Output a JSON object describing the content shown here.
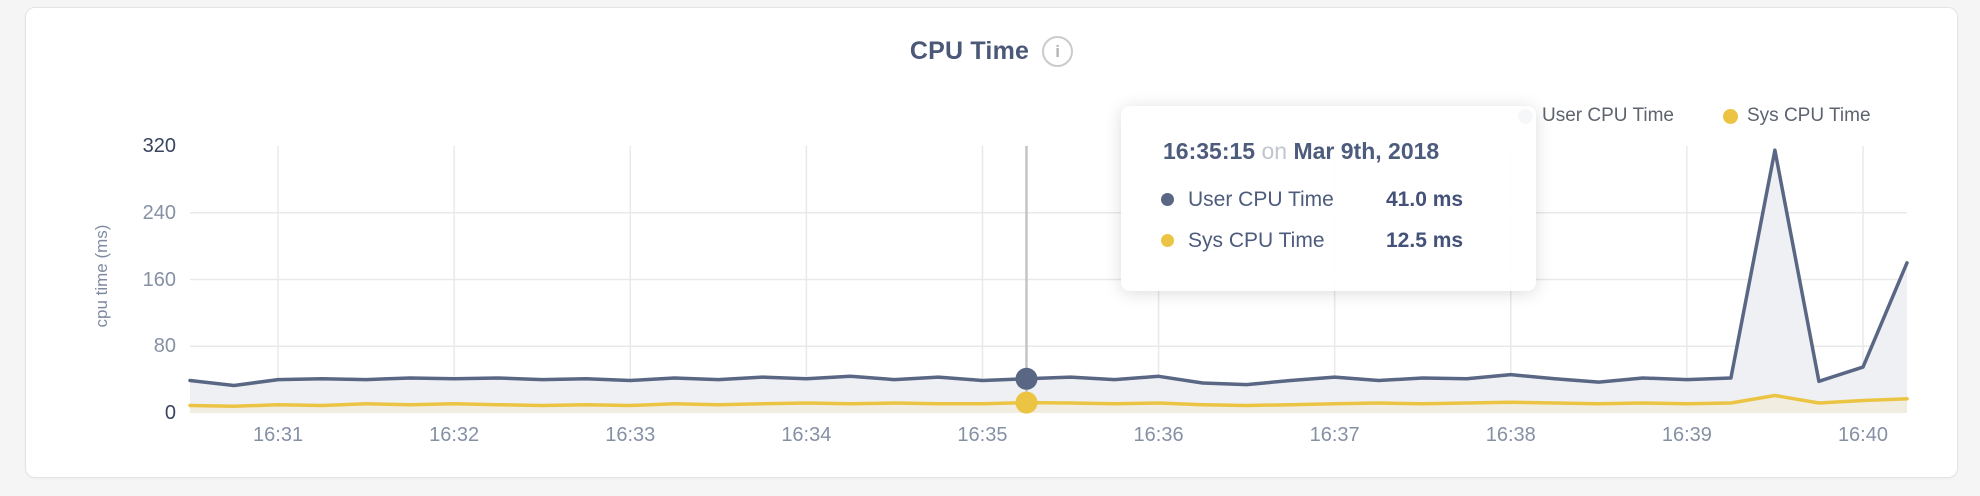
{
  "header": {
    "title": "CPU Time",
    "info_icon": "i"
  },
  "legend": {
    "items": [
      {
        "label": "User CPU Time",
        "color": "#5a6784"
      },
      {
        "label": "Sys CPU Time",
        "color": "#ecc443"
      }
    ]
  },
  "axes": {
    "y_label": "cpu time (ms)",
    "y_ticks": [
      {
        "value": 320,
        "label": "320",
        "emphasis": "strong"
      },
      {
        "value": 240,
        "label": "240",
        "emphasis": "dim"
      },
      {
        "value": 160,
        "label": "160",
        "emphasis": "dim"
      },
      {
        "value": 80,
        "label": "80",
        "emphasis": "dim"
      },
      {
        "value": 0,
        "label": "0",
        "emphasis": "strong"
      }
    ]
  },
  "tooltip": {
    "time": "16:35:15",
    "conjunction": "on",
    "date": "Mar 9th, 2018",
    "rows": [
      {
        "label": "User CPU Time",
        "value": "41.0 ms",
        "color": "#5a6784"
      },
      {
        "label": "Sys CPU Time",
        "value": "12.5 ms",
        "color": "#ecc443"
      }
    ]
  },
  "chart_data": {
    "type": "area",
    "title": "CPU Time",
    "ylabel": "cpu time (ms)",
    "ylim": [
      0,
      320
    ],
    "y_gridlines": [
      80,
      160,
      240
    ],
    "grid_color": "#e9e9ea",
    "x_tick_labels": [
      "16:31",
      "16:32",
      "16:33",
      "16:34",
      "16:35",
      "16:36",
      "16:37",
      "16:38",
      "16:39",
      "16:40"
    ],
    "x": [
      "16:30:30",
      "16:30:45",
      "16:31:00",
      "16:31:15",
      "16:31:30",
      "16:31:45",
      "16:32:00",
      "16:32:15",
      "16:32:30",
      "16:32:45",
      "16:33:00",
      "16:33:15",
      "16:33:30",
      "16:33:45",
      "16:34:00",
      "16:34:15",
      "16:34:30",
      "16:34:45",
      "16:35:00",
      "16:35:15",
      "16:35:30",
      "16:35:45",
      "16:36:00",
      "16:36:15",
      "16:36:30",
      "16:36:45",
      "16:37:00",
      "16:37:15",
      "16:37:30",
      "16:37:45",
      "16:38:00",
      "16:38:15",
      "16:38:30",
      "16:38:45",
      "16:39:00",
      "16:39:15",
      "16:39:30",
      "16:39:45",
      "16:40:00",
      "16:40:15"
    ],
    "series": [
      {
        "name": "User CPU Time",
        "color": "#5a6784",
        "fill": "#eef0f4",
        "values": [
          39,
          33,
          40,
          41,
          40,
          42,
          41,
          42,
          40,
          41,
          39,
          42,
          40,
          43,
          41,
          44,
          40,
          43,
          39,
          41,
          43,
          40,
          44,
          36,
          34,
          39,
          43,
          39,
          42,
          41,
          46,
          41,
          37,
          42,
          40,
          42,
          315,
          38,
          55,
          180
        ]
      },
      {
        "name": "Sys CPU Time",
        "color": "#ecc443",
        "fill": "#f1ede1",
        "values": [
          9,
          8,
          10,
          9,
          11,
          10,
          11,
          10,
          9,
          10,
          9,
          11,
          10,
          11,
          12,
          11,
          12,
          11,
          11,
          12.5,
          12,
          11,
          12,
          10,
          9,
          10,
          11,
          12,
          11,
          12,
          13,
          12,
          11,
          12,
          11,
          12,
          21,
          12,
          15,
          17
        ]
      }
    ],
    "hover": {
      "time": "16:35:15",
      "index": 19,
      "line_color": "#c4c4c6",
      "values_ms": {
        "user": 41.0,
        "sys": 12.5
      }
    }
  }
}
